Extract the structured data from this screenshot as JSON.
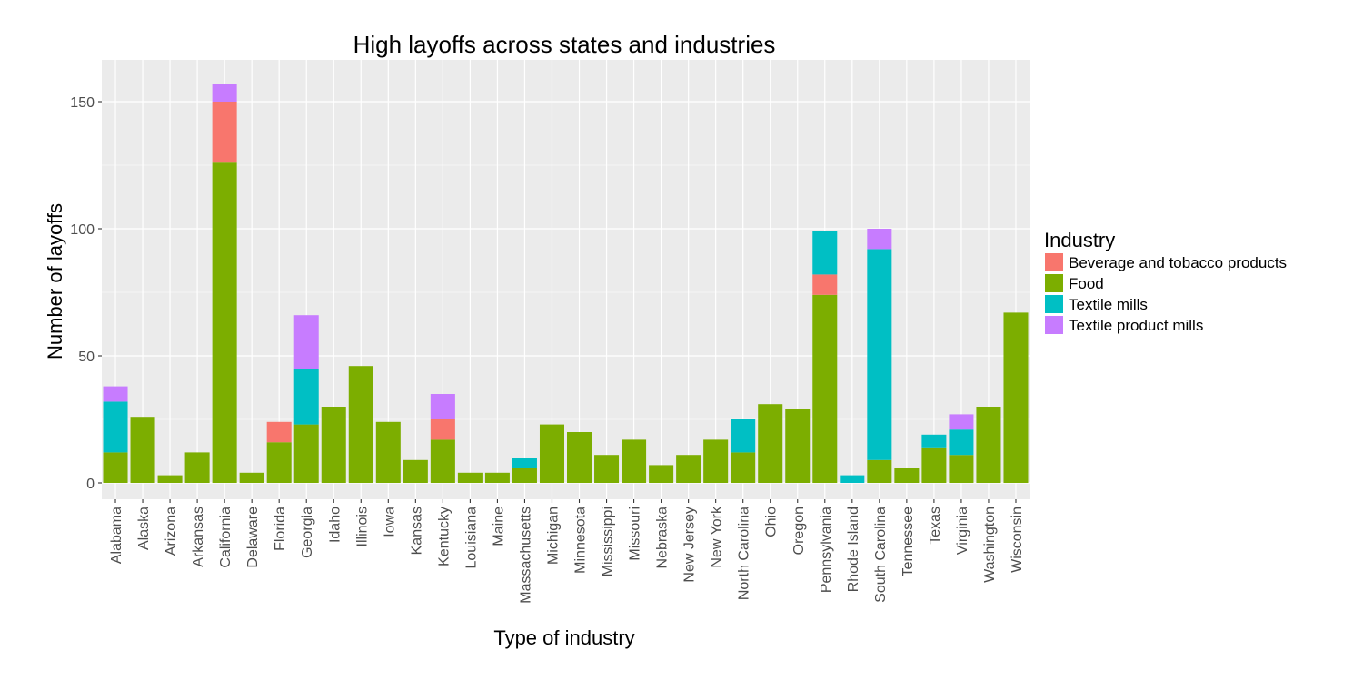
{
  "chart_data": {
    "type": "bar",
    "stacked": true,
    "title": "High layoffs across states and industries",
    "xlabel": "Type of industry",
    "ylabel": "Number of layoffs",
    "ylim": [
      -5,
      164
    ],
    "yticks": [
      0,
      50,
      100,
      150
    ],
    "grid": true,
    "legend_position": "right",
    "legend_title": "Industry",
    "categories": [
      "Alabama",
      "Alaska",
      "Arizona",
      "Arkansas",
      "California",
      "Delaware",
      "Florida",
      "Georgia",
      "Idaho",
      "Illinois",
      "Iowa",
      "Kansas",
      "Kentucky",
      "Louisiana",
      "Maine",
      "Massachusetts",
      "Michigan",
      "Minnesota",
      "Mississippi",
      "Missouri",
      "Nebraska",
      "New Jersey",
      "New York",
      "North Carolina",
      "Ohio",
      "Oregon",
      "Pennsylvania",
      "Rhode Island",
      "South Carolina",
      "Tennessee",
      "Texas",
      "Virginia",
      "Washington",
      "Wisconsin"
    ],
    "series": [
      {
        "name": "Food",
        "color": "#7CAE00",
        "values": [
          12,
          26,
          3,
          12,
          126,
          4,
          16,
          23,
          30,
          46,
          24,
          9,
          17,
          4,
          4,
          6,
          23,
          20,
          11,
          17,
          7,
          11,
          17,
          12,
          31,
          29,
          74,
          0,
          9,
          6,
          14,
          11,
          30,
          67
        ]
      },
      {
        "name": "Beverage and tobacco products",
        "color": "#F8766D",
        "values": [
          0,
          0,
          0,
          0,
          24,
          0,
          8,
          0,
          0,
          0,
          0,
          0,
          8,
          0,
          0,
          0,
          0,
          0,
          0,
          0,
          0,
          0,
          0,
          0,
          0,
          0,
          8,
          0,
          0,
          0,
          0,
          0,
          0,
          0
        ]
      },
      {
        "name": "Textile mills",
        "color": "#00BFC4",
        "values": [
          20,
          0,
          0,
          0,
          0,
          0,
          0,
          22,
          0,
          0,
          0,
          0,
          0,
          0,
          0,
          4,
          0,
          0,
          0,
          0,
          0,
          0,
          0,
          13,
          0,
          0,
          17,
          3,
          83,
          0,
          5,
          10,
          0,
          0
        ]
      },
      {
        "name": "Textile product mills",
        "color": "#C77CFF",
        "values": [
          6,
          0,
          0,
          0,
          7,
          0,
          0,
          21,
          0,
          0,
          0,
          0,
          10,
          0,
          0,
          0,
          0,
          0,
          0,
          0,
          0,
          0,
          0,
          0,
          0,
          0,
          0,
          0,
          8,
          0,
          0,
          6,
          0,
          0
        ]
      }
    ],
    "legend_order": [
      "Beverage and tobacco products",
      "Food",
      "Textile mills",
      "Textile product mills"
    ],
    "panel_color": "#EBEBEB",
    "grid_color": "#FFFFFF"
  }
}
